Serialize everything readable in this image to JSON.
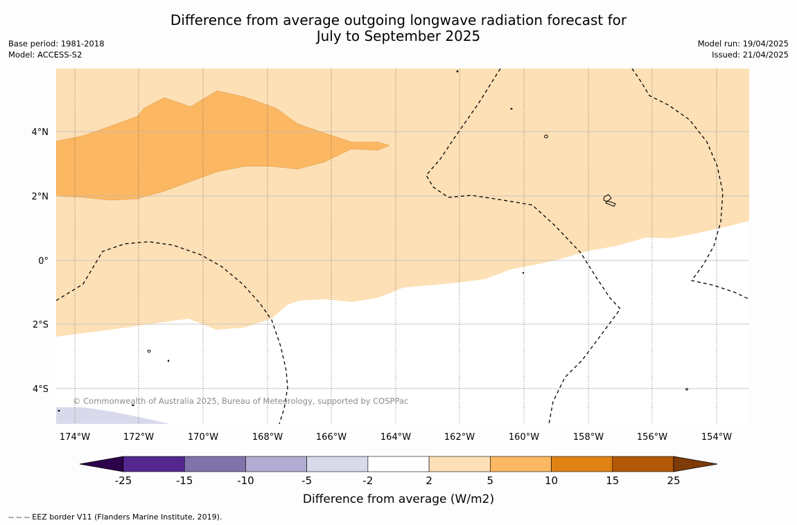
{
  "header": {
    "title_line1": "Difference from average outgoing longwave radiation forecast for",
    "title_line2": "July to September 2025",
    "base_period": "Base period: 1981-2018",
    "model": "Model: ACCESS-S2",
    "model_run": "Model run: 19/04/2025",
    "issued": "Issued: 21/04/2025"
  },
  "map": {
    "copyright": "© Commonwealth of Australia 2025, Bureau of Meteorology, supported by COSPPac",
    "lon_labels": [
      "174°W",
      "172°W",
      "170°W",
      "168°W",
      "166°W",
      "164°W",
      "162°W",
      "160°W",
      "158°W",
      "156°W",
      "154°W"
    ],
    "lat_labels": [
      "4°N",
      "2°N",
      "0°",
      "2°S",
      "4°S"
    ],
    "field_value_bins": [
      {
        "range": "2 to 5",
        "color": "#fde0b5"
      },
      {
        "range": "5 to 10",
        "color": "#fcb762"
      },
      {
        "range": "-5 to -2",
        "color": "#d9d9ec"
      },
      {
        "range": "-2 to 2",
        "color": "#ffffff"
      }
    ]
  },
  "colorbar": {
    "title": "Difference from average (W/m2)",
    "ticks": [
      "-25",
      "-15",
      "-10",
      "-5",
      "-2",
      "2",
      "5",
      "10",
      "15",
      "25"
    ],
    "colors": [
      "#54278f",
      "#8073ac",
      "#b2abd2",
      "#d8daeb",
      "#ffffff",
      "#fee0b6",
      "#fdb863",
      "#e08214",
      "#b35806"
    ],
    "under_color": "#2d004b",
    "over_color": "#7f3b08"
  },
  "footer": {
    "legend_text": "--  --  -- EEZ border V11 (Flanders Marine Institute, 2019)."
  }
}
